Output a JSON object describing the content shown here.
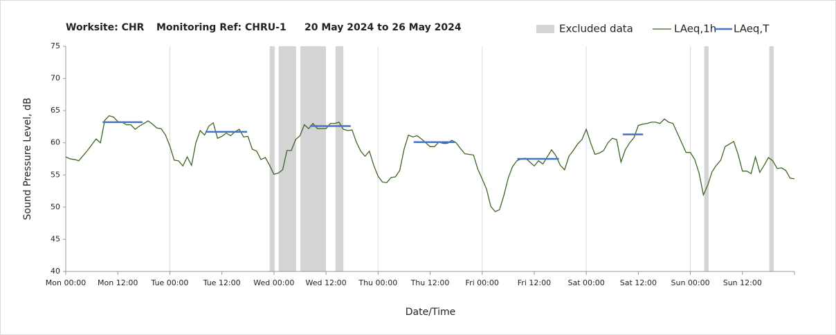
{
  "chart_data": {
    "type": "line",
    "title": [
      "Worksite: CHR",
      "Monitoring Ref: CHRU-1",
      "20 May 2024 to 26 May 2024"
    ],
    "xlabel": "Date/Time",
    "ylabel": "Sound Pressure Level, dB",
    "xlim": [
      0,
      168
    ],
    "xticks": [
      {
        "value": 0,
        "label": "Mon 00:00"
      },
      {
        "value": 12,
        "label": "Mon 12:00"
      },
      {
        "value": 24,
        "label": "Tue 00:00"
      },
      {
        "value": 36,
        "label": "Tue 12:00"
      },
      {
        "value": 48,
        "label": "Wed 00:00"
      },
      {
        "value": 60,
        "label": "Wed 12:00"
      },
      {
        "value": 72,
        "label": "Thu 00:00"
      },
      {
        "value": 84,
        "label": "Thu 12:00"
      },
      {
        "value": 96,
        "label": "Fri 00:00"
      },
      {
        "value": 108,
        "label": "Fri 12:00"
      },
      {
        "value": 120,
        "label": "Sat 00:00"
      },
      {
        "value": 132,
        "label": "Sat 12:00"
      },
      {
        "value": 144,
        "label": "Sun 00:00"
      },
      {
        "value": 156,
        "label": "Sun 12:00"
      }
    ],
    "ylim": [
      40,
      75
    ],
    "yticks": [
      40,
      45,
      50,
      55,
      60,
      65,
      70,
      75
    ],
    "grid": "x",
    "legend": "top-right",
    "excluded": {
      "name": "Excluded data",
      "color": "#d4d4d4",
      "ranges": [
        [
          47,
          48.2
        ],
        [
          49.1,
          53.1
        ],
        [
          54.1,
          60
        ],
        [
          62.2,
          64
        ],
        [
          147.2,
          148.2
        ],
        [
          162.2,
          163.2
        ]
      ]
    },
    "series": [
      {
        "name": "LAeq,1h",
        "color": "#3a6420",
        "x": [
          0,
          1,
          2,
          3,
          4,
          5,
          6,
          7,
          8,
          9,
          10,
          11,
          12,
          13,
          14,
          15,
          16,
          17,
          18,
          19,
          20,
          21,
          22,
          23,
          24,
          25,
          26,
          27,
          28,
          29,
          30,
          31,
          32,
          33,
          34,
          35,
          36,
          37,
          38,
          39,
          40,
          41,
          42,
          43,
          44,
          45,
          46,
          47,
          48,
          49,
          50,
          51,
          52,
          53,
          54,
          55,
          56,
          57,
          58,
          59,
          60,
          61,
          62,
          63,
          64,
          65,
          66,
          67,
          68,
          69,
          70,
          71,
          72,
          73,
          74,
          75,
          76,
          77,
          78,
          79,
          80,
          81,
          82,
          83,
          84,
          85,
          86,
          87,
          88,
          89,
          90,
          91,
          92,
          93,
          94,
          95,
          96,
          97,
          98,
          99,
          100,
          101,
          102,
          103,
          104,
          105,
          106,
          107,
          108,
          109,
          110,
          111,
          112,
          113,
          114,
          115,
          116,
          117,
          118,
          119,
          120,
          121,
          122,
          123,
          124,
          125,
          126,
          127,
          128,
          129,
          130,
          131,
          132,
          133,
          134,
          135,
          136,
          137,
          138,
          139,
          140,
          141,
          142,
          143,
          144,
          145,
          146,
          147,
          148,
          149,
          150,
          151,
          152,
          153,
          154,
          155,
          156,
          157,
          158,
          159,
          160,
          161,
          162,
          163,
          164,
          165,
          166,
          167,
          168
        ],
        "values": [
          57.8,
          57.5,
          57.4,
          57.2,
          58.0,
          58.8,
          59.7,
          60.6,
          60.0,
          63.5,
          64.2,
          64.0,
          63.3,
          63.2,
          62.8,
          62.8,
          62.1,
          62.6,
          63.0,
          63.4,
          62.9,
          62.3,
          62.2,
          61.2,
          59.5,
          57.3,
          57.2,
          56.4,
          57.8,
          56.5,
          60.0,
          61.9,
          61.2,
          62.6,
          63.1,
          60.7,
          61.0,
          61.5,
          61.1,
          61.7,
          62.1,
          60.9,
          61.0,
          59.0,
          58.7,
          57.4,
          57.7,
          56.5,
          55.1,
          55.3,
          55.8,
          58.8,
          58.8,
          60.5,
          61.1,
          62.8,
          62.2,
          63.0,
          62.2,
          62.2,
          62.2,
          63.0,
          63.0,
          63.2,
          62.1,
          61.9,
          62.0,
          60.1,
          58.7,
          57.9,
          58.7,
          56.5,
          54.8,
          53.9,
          53.8,
          54.6,
          54.7,
          55.7,
          59.0,
          61.2,
          60.9,
          61.1,
          60.6,
          60.0,
          59.4,
          59.4,
          60.1,
          59.9,
          59.9,
          60.4,
          60.0,
          59.1,
          58.3,
          58.2,
          58.1,
          55.9,
          54.4,
          52.8,
          50.1,
          49.3,
          49.6,
          51.8,
          54.5,
          56.3,
          57.2,
          57.5,
          57.6,
          57.0,
          56.4,
          57.2,
          56.7,
          57.8,
          58.9,
          58.0,
          56.5,
          55.8,
          57.9,
          58.8,
          59.8,
          60.5,
          62.1,
          60.0,
          58.2,
          58.4,
          58.8,
          60.0,
          60.7,
          60.5,
          57.0,
          58.9,
          60.0,
          60.8,
          62.7,
          62.9,
          63.0,
          63.2,
          63.2,
          63.0,
          63.7,
          63.2,
          63.0,
          61.5,
          60.0,
          58.5,
          58.5,
          57.4,
          55.3,
          51.9,
          53.4,
          55.5,
          56.5,
          57.3,
          59.4,
          59.8,
          60.2,
          58.2,
          55.6,
          55.6,
          55.2,
          57.8,
          55.4,
          56.5,
          57.7,
          57.2,
          56.0,
          56.1,
          55.7,
          54.5,
          54.4
        ]
      },
      {
        "name": "LAeq,T",
        "color": "#4472c4",
        "periods": [
          {
            "x": [
              8.5,
              17.7
            ],
            "value": 63.2
          },
          {
            "x": [
              32.2,
              41.8
            ],
            "value": 61.7
          },
          {
            "x": [
              56.3,
              65.7
            ],
            "value": 62.6
          },
          {
            "x": [
              80.2,
              89.8
            ],
            "value": 60.1
          },
          {
            "x": [
              104.1,
              113.7
            ],
            "value": 57.5
          },
          {
            "x": [
              128.4,
              133.1
            ],
            "value": 61.3
          }
        ]
      }
    ]
  }
}
